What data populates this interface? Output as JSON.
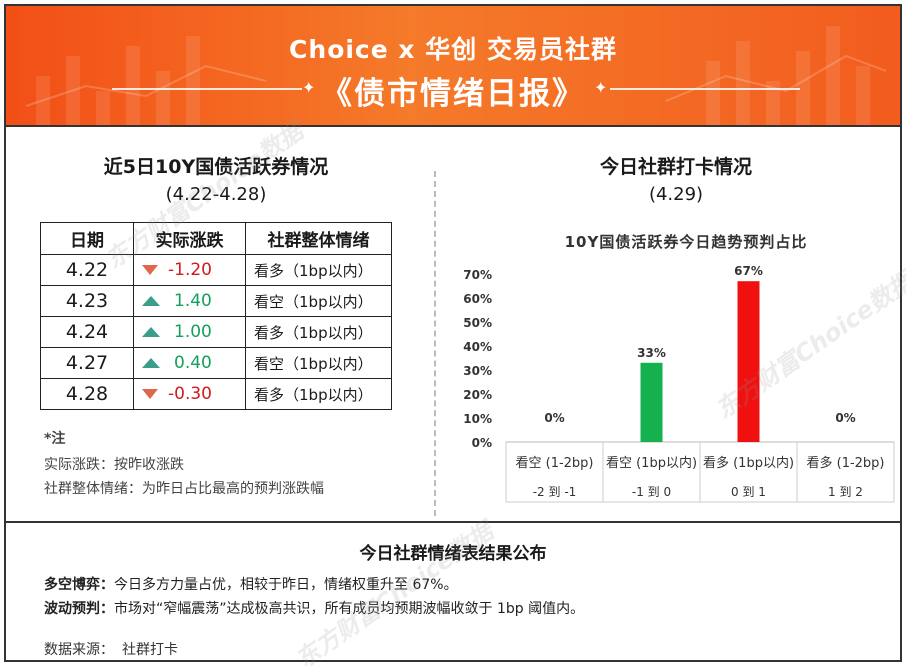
{
  "banner": {
    "line1": "Choice x 华创 交易员社群",
    "line2": "《债市情绪日报》"
  },
  "left": {
    "title": "近5日10Y国债活跃券情况",
    "date_range": "(4.22-4.28)",
    "columns": [
      "日期",
      "实际涨跌",
      "社群整体情绪"
    ],
    "rows": [
      {
        "date": "4.22",
        "change": "-1.20",
        "direction": "down",
        "mood": "看多（1bp以内）"
      },
      {
        "date": "4.23",
        "change": "1.40",
        "direction": "up",
        "mood": "看空（1bp以内）"
      },
      {
        "date": "4.24",
        "change": "1.00",
        "direction": "up",
        "mood": "看多（1bp以内）"
      },
      {
        "date": "4.27",
        "change": "0.40",
        "direction": "up",
        "mood": "看空（1bp以内）"
      },
      {
        "date": "4.28",
        "change": "-0.30",
        "direction": "down",
        "mood": "看多（1bp以内）"
      }
    ],
    "note_title": "*注",
    "note_lines": [
      "实际涨跌：按昨收涨跌",
      "社群整体情绪：为昨日占比最高的预判涨跌幅"
    ]
  },
  "right": {
    "title": "今日社群打卡情况",
    "date": "(4.29)"
  },
  "chart_data": {
    "type": "bar",
    "title": "10Y国债活跃券今日趋势预判占比",
    "categories": [
      "看空 (1-2bp)",
      "看空 (1bp以内)",
      "看多 (1bp以内)",
      "看多 (1-2bp)"
    ],
    "ranges": [
      "-2 到 -1",
      "-1 到 0",
      "0 到 1",
      "1 到 2"
    ],
    "values": [
      0,
      33,
      67,
      0
    ],
    "value_labels": [
      "0%",
      "33%",
      "67%",
      "0%"
    ],
    "bar_colors": [
      "#16b14f",
      "#16b14f",
      "#f01010",
      "#f01010"
    ],
    "yticks": [
      "0%",
      "10%",
      "20%",
      "30%",
      "40%",
      "50%",
      "60%",
      "70%"
    ],
    "ylim": [
      0,
      70
    ]
  },
  "bottom": {
    "title": "今日社群情绪表结果公布",
    "line1_label": "多空博弈：",
    "line1_text": "今日多方力量占优，相较于昨日，情绪权重升至 67%。",
    "line2_label": "波动预判：",
    "line2_text": "市场对“窄幅震荡”达成极高共识，所有成员均预期波幅收敛于 1bp 阈值内。",
    "source_label": "数据来源：",
    "source_value": "社群打卡"
  },
  "watermarks": [
    "东方财富Choice数据",
    "东方财富Choice数据",
    "东方财富Choice数据"
  ]
}
